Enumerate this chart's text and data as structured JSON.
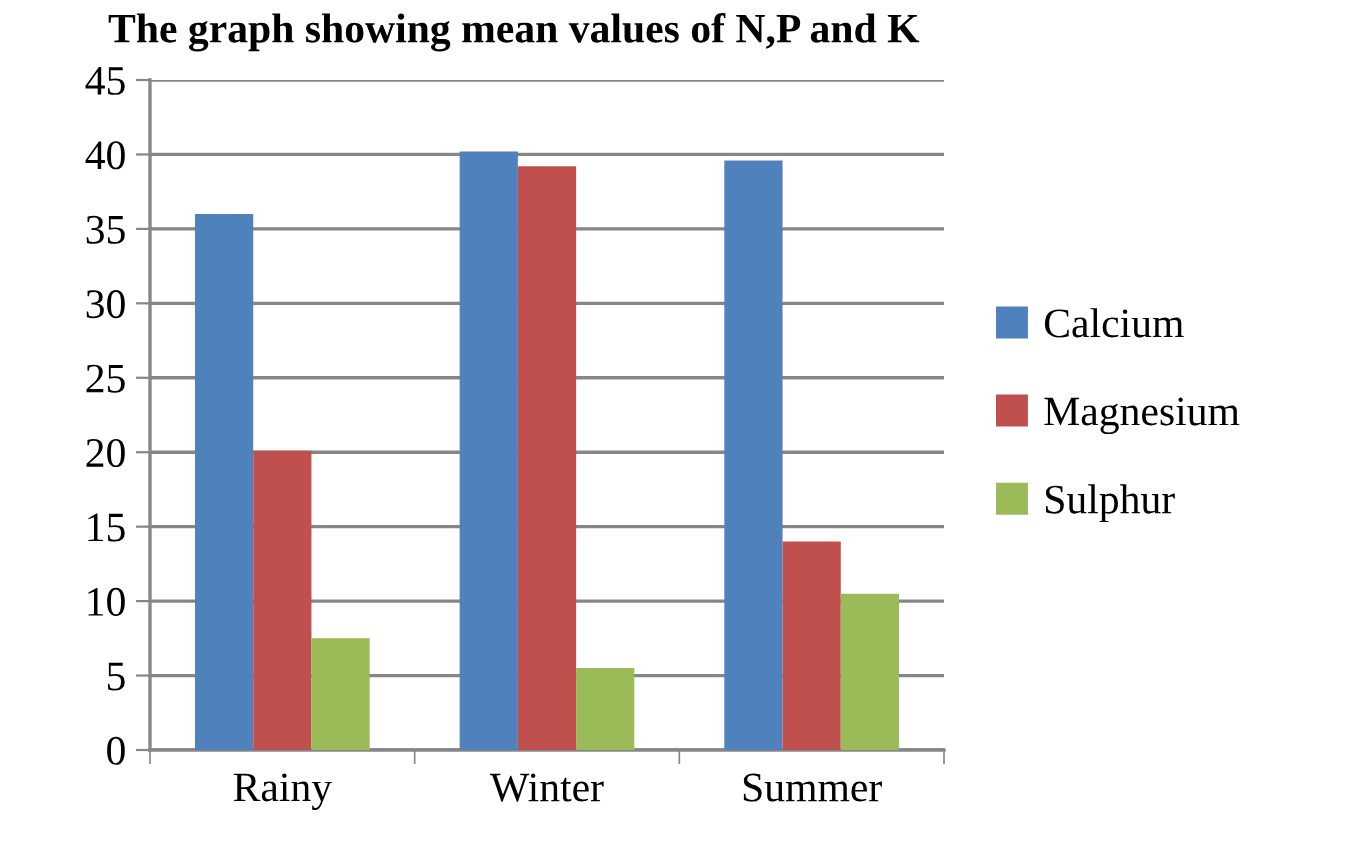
{
  "chart_data": {
    "type": "bar",
    "title": "The graph showing mean values of N,P and K",
    "categories": [
      "Rainy",
      "Winter",
      "Summer"
    ],
    "series": [
      {
        "name": "Calcium",
        "color": "#4f81bd",
        "values": [
          36.0,
          40.2,
          39.6
        ]
      },
      {
        "name": "Magnesium",
        "color": "#c0504d",
        "values": [
          20.1,
          39.2,
          14.0
        ]
      },
      {
        "name": "Sulphur",
        "color": "#9bbb59",
        "values": [
          7.5,
          5.5,
          10.5
        ]
      }
    ],
    "ylim": [
      0,
      45
    ],
    "yticks": [
      0,
      5,
      10,
      15,
      20,
      25,
      30,
      35,
      40,
      45
    ],
    "grid": "y",
    "legend": "right"
  }
}
